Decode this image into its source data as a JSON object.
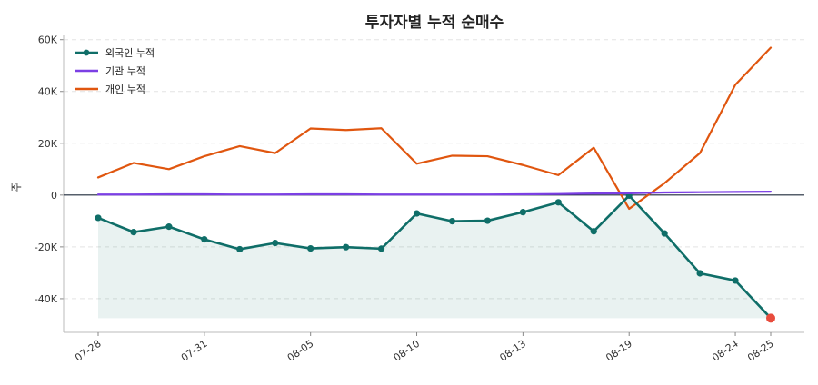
{
  "chart_data": {
    "type": "line",
    "title": "투자자별 누적 순매수",
    "xlabel": "",
    "ylabel": "주",
    "ylim": [
      -53000,
      62000
    ],
    "y_ticks": [
      -40000,
      -20000,
      0,
      20000,
      40000,
      60000
    ],
    "y_tick_labels": [
      "-40K",
      "-20K",
      "0",
      "20K",
      "40K",
      "60K"
    ],
    "grid": true,
    "legend_position": "top-left",
    "x": [
      "07-28",
      "07-29",
      "07-30",
      "07-31",
      "08-01",
      "08-04",
      "08-05",
      "08-06",
      "08-07",
      "08-10",
      "08-11",
      "08-12",
      "08-13",
      "08-14",
      "08-18",
      "08-19",
      "08-20",
      "08-21",
      "08-24",
      "08-25"
    ],
    "x_tick_labels": [
      "07-28",
      "07-31",
      "08-05",
      "08-10",
      "08-13",
      "08-19",
      "08-24",
      "08-25"
    ],
    "x_tick_indices": [
      0,
      3,
      6,
      9,
      12,
      15,
      18,
      19
    ],
    "series": [
      {
        "name": "외국인 누적",
        "color": "#0f6e68",
        "fill": true,
        "markers": true,
        "values": [
          -8800,
          -14300,
          -12200,
          -17100,
          -20900,
          -18500,
          -20600,
          -20100,
          -20700,
          -7100,
          -10100,
          -9900,
          -6600,
          -2800,
          -14000,
          -200,
          -14800,
          -30200,
          -33000,
          -47500
        ]
      },
      {
        "name": "기관 누적",
        "color": "#7b3fe4",
        "fill": false,
        "markers": false,
        "values": [
          200,
          200,
          300,
          300,
          200,
          200,
          300,
          300,
          200,
          200,
          200,
          200,
          300,
          400,
          600,
          700,
          1000,
          1100,
          1200,
          1300
        ]
      },
      {
        "name": "개인 누적",
        "color": "#e0560f",
        "fill": false,
        "markers": false,
        "values": [
          6800,
          12400,
          10000,
          15000,
          18900,
          16200,
          25700,
          25100,
          25800,
          12100,
          15200,
          15000,
          11600,
          7700,
          18300,
          -5300,
          4600,
          16200,
          42600,
          56900
        ]
      }
    ],
    "highlight_last_point_color": "#e84c3d"
  }
}
